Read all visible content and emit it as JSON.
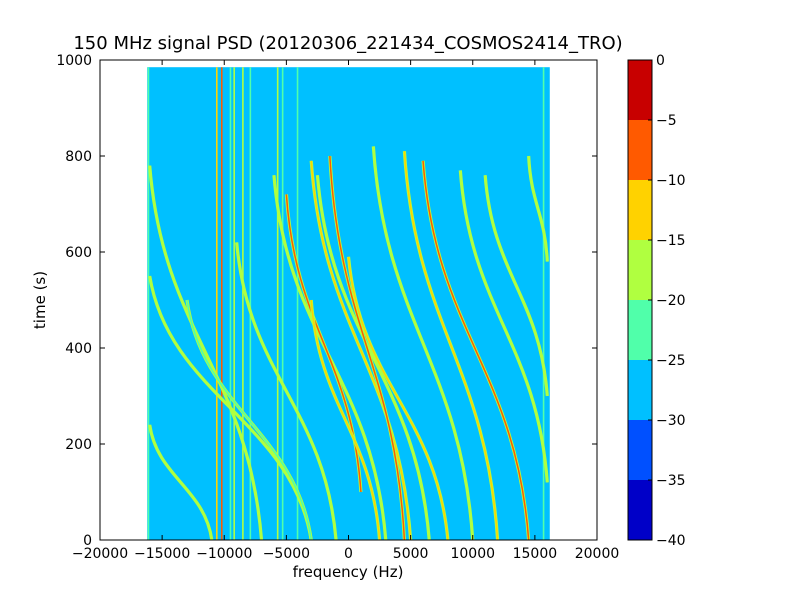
{
  "chart_data": {
    "type": "heatmap",
    "title": "150 MHz signal PSD (20120306_221434_COSMOS2414_TRO)",
    "xlabel": "frequency (Hz)",
    "ylabel": "time (s)",
    "xlim": [
      -20000,
      20000
    ],
    "ylim": [
      0,
      1000
    ],
    "x_ticks": [
      -20000,
      -15000,
      -10000,
      -5000,
      0,
      5000,
      10000,
      15000,
      20000
    ],
    "x_tick_labels": [
      "−20000",
      "−15000",
      "−10000",
      "−5000",
      "0",
      "5000",
      "10000",
      "15000",
      "20000"
    ],
    "y_ticks": [
      0,
      200,
      400,
      600,
      800,
      1000
    ],
    "y_tick_labels": [
      "0",
      "200",
      "400",
      "600",
      "800",
      "1000"
    ],
    "data_extent": {
      "x": [
        -16200,
        16200
      ],
      "y": [
        0,
        985
      ]
    },
    "background_level": -27.5,
    "colorbar": {
      "min": -40,
      "max": 0,
      "levels": [
        -40,
        -35,
        -30,
        -25,
        -20,
        -15,
        -10,
        -5,
        0
      ],
      "tick_labels": [
        "−40",
        "−35",
        "−30",
        "−25",
        "−20",
        "−15",
        "−10",
        "−5",
        "0"
      ],
      "colors": [
        "#0000c8",
        "#0050ff",
        "#00c0ff",
        "#50ffaa",
        "#b0ff40",
        "#ffd200",
        "#ff5a00",
        "#c80000"
      ]
    },
    "vertical_lines": [
      {
        "x": -16100,
        "level": -22
      },
      {
        "x": -10600,
        "level": -15
      },
      {
        "x": -10200,
        "level": -8
      },
      {
        "x": -9500,
        "level": -22
      },
      {
        "x": -9200,
        "level": -20
      },
      {
        "x": -8500,
        "level": -20
      },
      {
        "x": -7900,
        "level": -22
      },
      {
        "x": -5700,
        "level": -20
      },
      {
        "x": -5300,
        "level": -22
      },
      {
        "x": -4100,
        "level": -22
      },
      {
        "x": 15700,
        "level": -22
      }
    ],
    "doppler_tracks": [
      {
        "start": [
          -16000,
          780
        ],
        "end": [
          -7000,
          0
        ],
        "level": -18
      },
      {
        "start": [
          -16000,
          550
        ],
        "end": [
          -3000,
          0
        ],
        "level": -20
      },
      {
        "start": [
          -16000,
          240
        ],
        "end": [
          -11000,
          0
        ],
        "level": -18
      },
      {
        "start": [
          -13000,
          500
        ],
        "end": [
          -3000,
          0
        ],
        "level": -22
      },
      {
        "start": [
          -9000,
          620
        ],
        "end": [
          -1000,
          0
        ],
        "level": -20
      },
      {
        "start": [
          -6000,
          760
        ],
        "end": [
          3000,
          0
        ],
        "level": -20
      },
      {
        "start": [
          -5000,
          720
        ],
        "end": [
          1000,
          100
        ],
        "level": -10
      },
      {
        "start": [
          -3000,
          790
        ],
        "end": [
          5000,
          0
        ],
        "level": -15
      },
      {
        "start": [
          -2500,
          760
        ],
        "end": [
          6500,
          0
        ],
        "level": -20
      },
      {
        "start": [
          -1500,
          800
        ],
        "end": [
          4500,
          0
        ],
        "level": -10
      },
      {
        "start": [
          0,
          590
        ],
        "end": [
          8000,
          0
        ],
        "level": -15
      },
      {
        "start": [
          2000,
          820
        ],
        "end": [
          10000,
          0
        ],
        "level": -20
      },
      {
        "start": [
          4500,
          810
        ],
        "end": [
          12000,
          0
        ],
        "level": -15
      },
      {
        "start": [
          6000,
          790
        ],
        "end": [
          14500,
          0
        ],
        "level": -10
      },
      {
        "start": [
          9000,
          770
        ],
        "end": [
          16000,
          120
        ],
        "level": -20
      },
      {
        "start": [
          11000,
          760
        ],
        "end": [
          16000,
          300
        ],
        "level": -20
      },
      {
        "start": [
          14500,
          800
        ],
        "end": [
          16000,
          580
        ],
        "level": -20
      },
      {
        "start": [
          -3000,
          500
        ],
        "end": [
          2500,
          0
        ],
        "level": -12
      }
    ]
  }
}
